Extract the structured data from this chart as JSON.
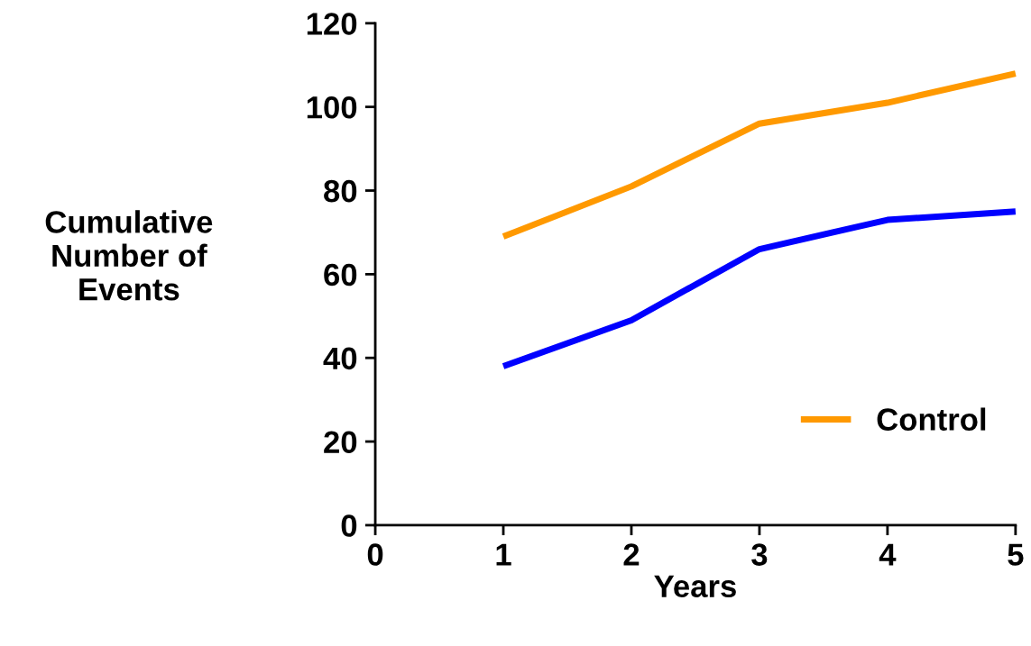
{
  "chart_data": {
    "type": "line",
    "xlabel": "Years",
    "ylabel": "Cumulative\nNumber of\nEvents",
    "x": [
      1,
      2,
      3,
      4,
      5
    ],
    "series": [
      {
        "color": "#0000ff",
        "values": [
          38,
          49,
          66,
          73,
          75
        ]
      },
      {
        "name": "Control",
        "color": "#ff9900",
        "values": [
          69,
          81,
          96,
          101,
          108
        ]
      }
    ],
    "xlim": [
      0,
      5
    ],
    "xticks": [
      0,
      1,
      2,
      3,
      4,
      5
    ],
    "ylim": [
      0,
      120
    ],
    "yticks": [
      0,
      20,
      40,
      60,
      80,
      100,
      120
    ],
    "grid": false,
    "legend": "bottom right",
    "marker": "none",
    "line_style": "solid"
  }
}
